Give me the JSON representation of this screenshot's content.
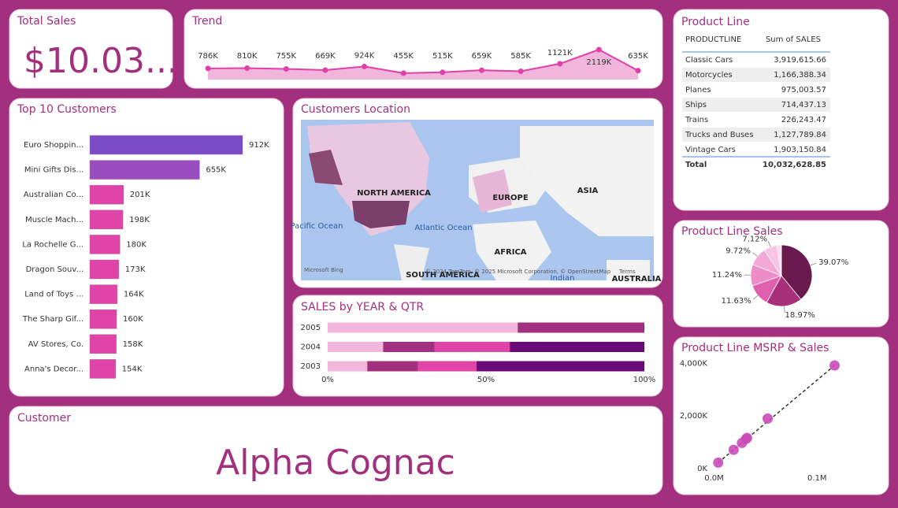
{
  "total_sales": {
    "title": "Total Sales",
    "value": "$10.03..."
  },
  "customer": {
    "title": "Customer",
    "value": "Alpha Cognac"
  },
  "map": {
    "title": "Customers Location",
    "labels": [
      "NORTH AMERICA",
      "EUROPE",
      "ASIA",
      "AFRICA",
      "SOUTH AMERICA",
      "Pacific Ocean",
      "Atlantic Ocean",
      "Indian",
      "AUSTRALIA"
    ],
    "attribution": "© 2024 TomTom, © 2025 Microsoft Corporation, © OpenStreetMap",
    "terms": "Terms",
    "logo": "Microsoft Bing"
  },
  "table": {
    "title": "Product Line",
    "columns": [
      "PRODUCTLINE",
      "Sum of SALES"
    ],
    "rows": [
      [
        "Classic Cars",
        "3,919,615.66"
      ],
      [
        "Motorcycles",
        "1,166,388.34"
      ],
      [
        "Planes",
        "975,003.57"
      ],
      [
        "Ships",
        "714,437.13"
      ],
      [
        "Trains",
        "226,243.47"
      ],
      [
        "Trucks and Buses",
        "1,127,789.84"
      ],
      [
        "Vintage Cars",
        "1,903,150.84"
      ]
    ],
    "total": [
      "Total",
      "10,032,628.85"
    ]
  },
  "chart_data": [
    {
      "type": "line",
      "title": "Trend",
      "color": "#e040a8",
      "area_color": "#f2b5dc",
      "values": [
        786,
        810,
        755,
        669,
        924,
        455,
        515,
        659,
        585,
        1121,
        2119,
        635
      ],
      "value_labels": [
        "786K",
        "810K",
        "755K",
        "669K",
        "924K",
        "455K",
        "515K",
        "659K",
        "585K",
        "1121K",
        "2119K",
        "635K"
      ]
    },
    {
      "type": "hbar",
      "title": "Top 10 Customers",
      "categories": [
        "Euro Shoppin...",
        "Mini Gifts Dis...",
        "Australian Co...",
        "Muscle Mach...",
        "La Rochelle G...",
        "Dragon Souv...",
        "Land of Toys ...",
        "The Sharp Gif...",
        "AV Stores, Co.",
        "Anna's Decor..."
      ],
      "values": [
        912,
        655,
        201,
        198,
        180,
        173,
        164,
        160,
        158,
        154
      ],
      "value_labels": [
        "912K",
        "655K",
        "201K",
        "198K",
        "180K",
        "173K",
        "164K",
        "160K",
        "158K",
        "154K"
      ],
      "colors": [
        "#7a4cc8",
        "#9a4cc0",
        "#e044a8",
        "#e044a8",
        "#e044a8",
        "#e044a8",
        "#e044a8",
        "#e044a8",
        "#e044a8",
        "#e044a8"
      ]
    },
    {
      "type": "stacked100",
      "title": "SALES by YEAR & QTR",
      "categories": [
        "2005",
        "2004",
        "2003"
      ],
      "series": [
        {
          "color": "#f2b5dc",
          "values": [
            60,
            17.5,
            12.5
          ]
        },
        {
          "color": "#a3307e",
          "values": [
            40,
            16.2,
            16
          ]
        },
        {
          "color": "#e044a8",
          "values": [
            null,
            23.8,
            18.5
          ]
        },
        {
          "color": "#6b0a7a",
          "values": [
            null,
            42.5,
            53
          ]
        }
      ],
      "xlim": [
        0,
        100
      ],
      "xticks": [
        {
          "value": 0,
          "label": "0%"
        },
        {
          "value": 50,
          "label": "50%"
        },
        {
          "value": 100,
          "label": "100%"
        }
      ]
    },
    {
      "type": "pie",
      "title": "Product Line Sales",
      "values": [
        39.07,
        18.97,
        11.63,
        11.24,
        9.72,
        7.12,
        2.26
      ],
      "value_labels": [
        "39.07%",
        "18.97%",
        "11.63%",
        "11.24%",
        "9.72%",
        "7.12%",
        null
      ],
      "colors": [
        "#6b1a4f",
        "#a8307a",
        "#e060b0",
        "#ee8cc8",
        "#f3a8d6",
        "#f7c4e4",
        "#fadcef"
      ]
    },
    {
      "type": "scatter",
      "title": "Product Line MSRP & Sales",
      "color": "#c94bb8",
      "x": [
        0.004,
        0.019,
        0.027,
        0.031,
        0.032,
        0.052,
        0.117
      ],
      "values": [
        226,
        714,
        975,
        1128,
        1166,
        1903,
        3920
      ],
      "xlim": [
        -0.005,
        0.125
      ],
      "ylim": [
        -150,
        4100
      ],
      "xticks": [
        {
          "value": 0,
          "label": "0.0M"
        },
        {
          "value": 0.1,
          "label": "0.1M"
        }
      ],
      "yticks": [
        {
          "value": 0,
          "label": "0K"
        },
        {
          "value": 2000,
          "label": "2,000K"
        },
        {
          "value": 4000,
          "label": "4,000K"
        }
      ]
    }
  ]
}
